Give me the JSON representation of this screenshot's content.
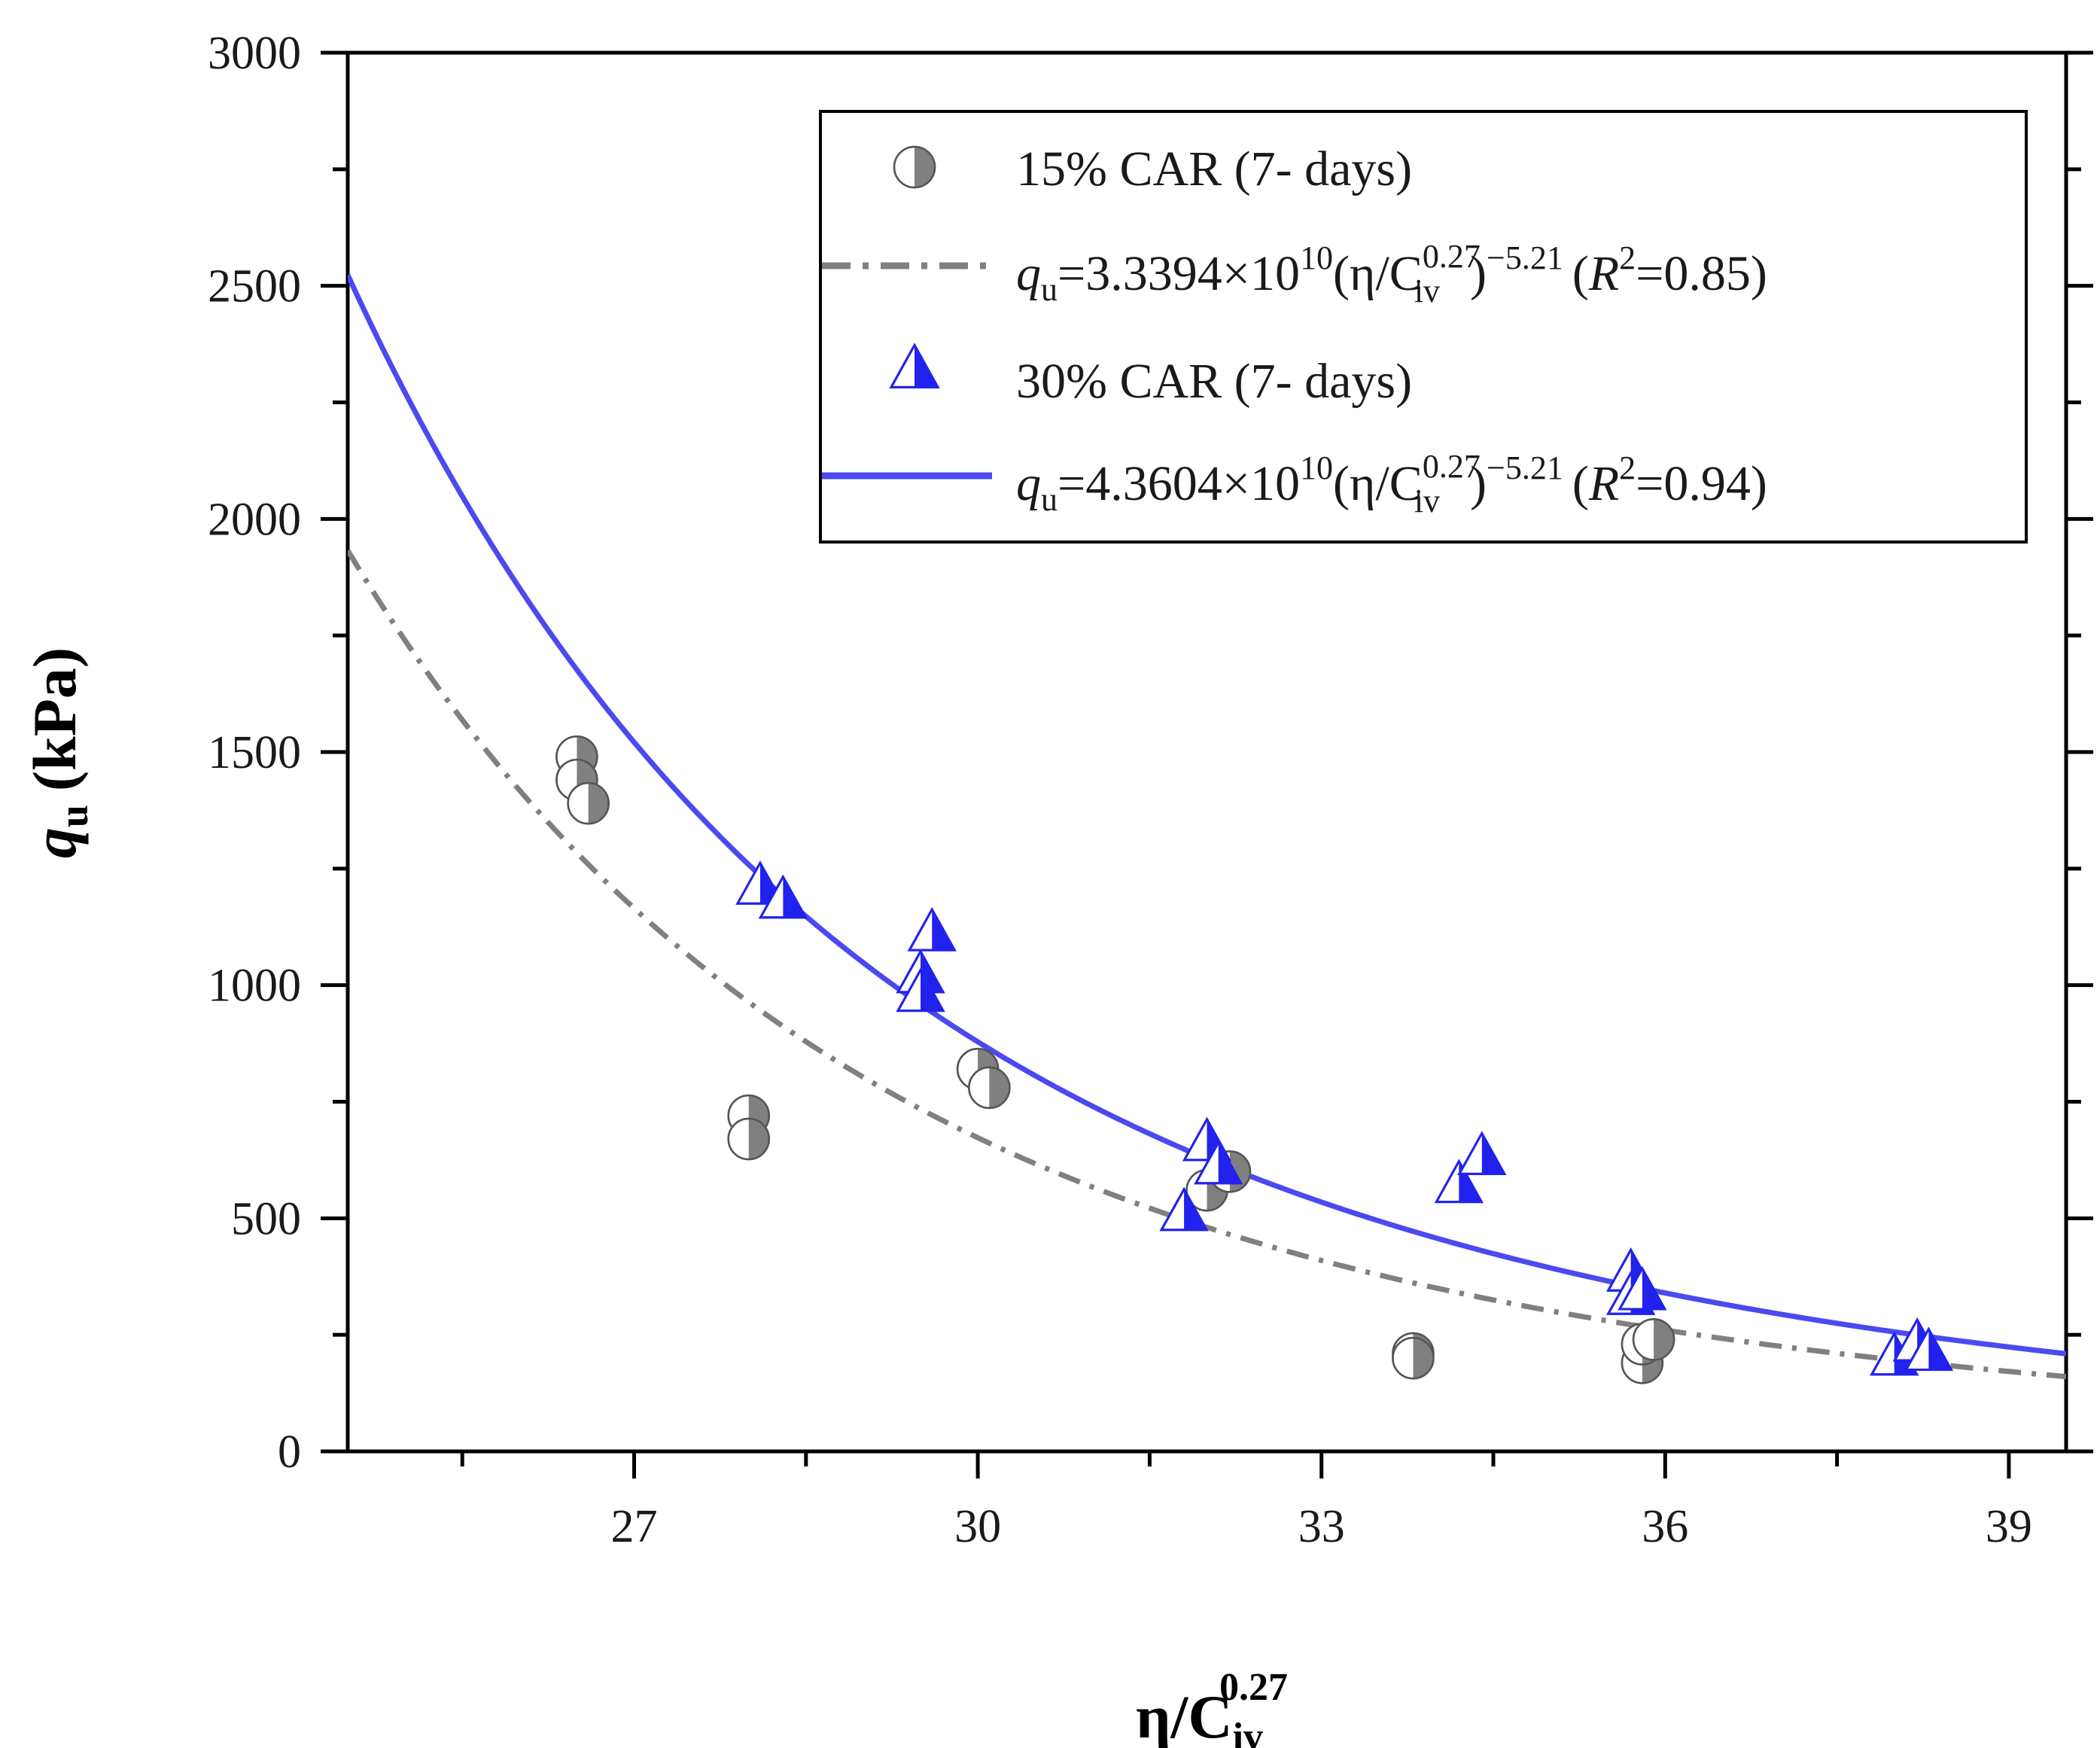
{
  "chart_data": {
    "type": "scatter",
    "xlabel": {
      "base": "η/C",
      "sub": "iv",
      "sup": "0.27"
    },
    "ylabel": {
      "var": "q",
      "sub": "u",
      "unit": "(kPa)"
    },
    "xlim": [
      24.5,
      39.5
    ],
    "ylim": [
      0,
      3000
    ],
    "xticks": [
      27,
      30,
      33,
      36,
      39
    ],
    "yticks": [
      0,
      500,
      1000,
      1500,
      2000,
      2500,
      3000
    ],
    "legend_position": "top-right",
    "series": [
      {
        "name": "15% CAR (7- days)",
        "marker": "half-filled-circle",
        "color": "#808080",
        "points": [
          [
            26.5,
            1490
          ],
          [
            26.5,
            1440
          ],
          [
            26.6,
            1390
          ],
          [
            28.0,
            720
          ],
          [
            28.0,
            670
          ],
          [
            30.0,
            820
          ],
          [
            30.1,
            780
          ],
          [
            32.0,
            560
          ],
          [
            32.2,
            600
          ],
          [
            33.8,
            210
          ],
          [
            33.8,
            200
          ],
          [
            35.8,
            190
          ],
          [
            35.8,
            230
          ],
          [
            35.9,
            240
          ]
        ]
      },
      {
        "name": "30% CAR (7- days)",
        "marker": "half-filled-triangle",
        "color": "#2222ee",
        "points": [
          [
            28.1,
            1210
          ],
          [
            28.3,
            1180
          ],
          [
            29.6,
            1110
          ],
          [
            29.5,
            1020
          ],
          [
            29.5,
            980
          ],
          [
            31.8,
            510
          ],
          [
            32.0,
            660
          ],
          [
            32.1,
            610
          ],
          [
            34.2,
            570
          ],
          [
            34.4,
            630
          ],
          [
            35.7,
            380
          ],
          [
            35.7,
            330
          ],
          [
            35.8,
            340
          ],
          [
            38.0,
            200
          ],
          [
            38.2,
            230
          ],
          [
            38.3,
            210
          ]
        ]
      }
    ],
    "fits": [
      {
        "name": "fit 15% CAR",
        "style": "dash-dot",
        "color": "#808080",
        "a": 33394000000.0,
        "b": -5.21,
        "label": {
          "q": "q",
          "qsub": "u",
          "eq": "=3.3394×10",
          "exp10": "10",
          "paren": "(η/C",
          "csup": "0.27",
          "csub": "iv",
          "close": ")",
          "pow": "−5.21",
          "r": "(",
          "R": "R",
          "R2": "2",
          "rval": "=0.85)"
        }
      },
      {
        "name": "fit 30% CAR",
        "style": "solid",
        "color": "#4a4af0",
        "a": 43604000000.0,
        "b": -5.21,
        "label": {
          "q": "q",
          "qsub": "u",
          "eq": "=4.3604×10",
          "exp10": "10",
          "paren": "(η/C",
          "csup": "0.27",
          "csub": "iv",
          "close": ")",
          "pow": "−5.21",
          "r": "(",
          "R": "R",
          "R2": "2",
          "rval": "=0.94)"
        }
      }
    ]
  }
}
